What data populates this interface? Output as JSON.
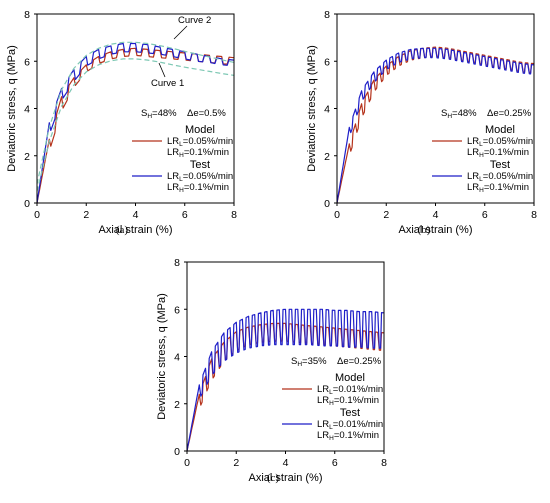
{
  "chart_data": [
    {
      "type": "line",
      "caption": "(a)",
      "xlabel": "Axial strain (%)",
      "ylabel": "Deviatoric stress, q (MPa)",
      "xlim": [
        0,
        8
      ],
      "ylim": [
        0,
        8
      ],
      "xticks": [
        "0",
        "2",
        "4",
        "6",
        "8"
      ],
      "yticks": [
        "0",
        "2",
        "4",
        "6",
        "8"
      ],
      "conditions": {
        "sh": "S",
        "sh_sub": "H",
        "sh_val": "=48%",
        "de": "Δe=0.5%"
      },
      "legend": {
        "model": {
          "header": "Model",
          "l1": "LR",
          "l1_sub": "L",
          "l1_val": "=0.05%/min",
          "l2": "LR",
          "l2_sub": "H",
          "l2_val": "=0.1%/min"
        },
        "test": {
          "header": "Test",
          "l1": "LR",
          "l1_sub": "L",
          "l1_val": "=0.05%/min",
          "l2": "LR",
          "l2_sub": "H",
          "l2_val": "=0.1%/min"
        }
      },
      "annotations": {
        "curve1": "Curve 1",
        "curve2": "Curve 2"
      },
      "series": [
        {
          "name": "Model",
          "color": "#b5331c",
          "low": [
            [
              0,
              0
            ],
            [
              0.5,
              2.2
            ],
            [
              1,
              3.9
            ],
            [
              1.5,
              4.9
            ],
            [
              2,
              5.55
            ],
            [
              2.5,
              5.9
            ],
            [
              3,
              6.1
            ],
            [
              3.5,
              6.2
            ],
            [
              4,
              6.25
            ],
            [
              4.5,
              6.2
            ],
            [
              5,
              6.15
            ],
            [
              5.5,
              6.1
            ],
            [
              6,
              6.05
            ],
            [
              6.5,
              6.0
            ],
            [
              7,
              5.95
            ],
            [
              7.5,
              5.9
            ],
            [
              8,
              5.85
            ]
          ],
          "high": [
            [
              0,
              0
            ],
            [
              0.5,
              2.7
            ],
            [
              1,
              4.5
            ],
            [
              1.5,
              5.3
            ],
            [
              2,
              5.85
            ],
            [
              2.5,
              6.2
            ],
            [
              3,
              6.4
            ],
            [
              3.5,
              6.5
            ],
            [
              4,
              6.55
            ],
            [
              4.5,
              6.5
            ],
            [
              5,
              6.45
            ],
            [
              5.5,
              6.4
            ],
            [
              6,
              6.35
            ],
            [
              6.5,
              6.3
            ],
            [
              7,
              6.25
            ],
            [
              7.5,
              6.2
            ],
            [
              8,
              6.15
            ]
          ],
          "cycle": 0.5
        },
        {
          "name": "Test",
          "color": "#1f1fc8",
          "low": [
            [
              0,
              0
            ],
            [
              0.5,
              2.9
            ],
            [
              1,
              4.35
            ],
            [
              1.5,
              5.15
            ],
            [
              2,
              5.8
            ],
            [
              2.5,
              6.1
            ],
            [
              3,
              6.3
            ],
            [
              3.5,
              6.4
            ],
            [
              4,
              6.4
            ],
            [
              4.5,
              6.35
            ],
            [
              5,
              6.3
            ],
            [
              5.5,
              6.2
            ],
            [
              6,
              6.1
            ],
            [
              6.5,
              6.0
            ],
            [
              7,
              5.95
            ],
            [
              7.5,
              5.85
            ],
            [
              8,
              5.8
            ]
          ],
          "high": [
            [
              0,
              0
            ],
            [
              0.5,
              3.4
            ],
            [
              1,
              4.85
            ],
            [
              1.5,
              5.65
            ],
            [
              2,
              6.2
            ],
            [
              2.5,
              6.5
            ],
            [
              3,
              6.65
            ],
            [
              3.5,
              6.75
            ],
            [
              4,
              6.75
            ],
            [
              4.5,
              6.7
            ],
            [
              5,
              6.6
            ],
            [
              5.5,
              6.5
            ],
            [
              6,
              6.4
            ],
            [
              6.5,
              6.3
            ],
            [
              7,
              6.2
            ],
            [
              7.5,
              6.1
            ],
            [
              8,
              6.05
            ]
          ],
          "cycle": 0.5
        },
        {
          "name": "Curve 2",
          "color": "#7ec8b4",
          "dashed": true,
          "points": [
            [
              0,
              0.8
            ],
            [
              0.5,
              3.2
            ],
            [
              1,
              4.8
            ],
            [
              1.5,
              5.7
            ],
            [
              2,
              6.25
            ],
            [
              2.5,
              6.55
            ],
            [
              3,
              6.72
            ],
            [
              3.5,
              6.8
            ],
            [
              4,
              6.8
            ],
            [
              4.5,
              6.75
            ],
            [
              5,
              6.66
            ],
            [
              5.5,
              6.55
            ],
            [
              6,
              6.42
            ],
            [
              6.5,
              6.3
            ],
            [
              7,
              6.18
            ],
            [
              7.5,
              6.06
            ],
            [
              8,
              5.95
            ]
          ]
        },
        {
          "name": "Curve 1",
          "color": "#7ec8b4",
          "dashed": true,
          "points": [
            [
              0,
              0.5
            ],
            [
              0.5,
              2.6
            ],
            [
              1,
              4.1
            ],
            [
              1.5,
              5.0
            ],
            [
              2,
              5.55
            ],
            [
              2.5,
              5.85
            ],
            [
              3,
              6.02
            ],
            [
              3.5,
              6.1
            ],
            [
              4,
              6.1
            ],
            [
              4.5,
              6.05
            ],
            [
              5,
              5.96
            ],
            [
              5.5,
              5.85
            ],
            [
              6,
              5.75
            ],
            [
              6.5,
              5.66
            ],
            [
              7,
              5.57
            ],
            [
              7.5,
              5.48
            ],
            [
              8,
              5.4
            ]
          ]
        }
      ]
    },
    {
      "type": "line",
      "caption": "(b)",
      "xlabel": "Axial strain (%)",
      "ylabel": "Deviatoric stress, q (MPa)",
      "xlim": [
        0,
        8
      ],
      "ylim": [
        0,
        8
      ],
      "xticks": [
        "0",
        "2",
        "4",
        "6",
        "8"
      ],
      "yticks": [
        "0",
        "2",
        "4",
        "6",
        "8"
      ],
      "conditions": {
        "sh": "S",
        "sh_sub": "H",
        "sh_val": "=48%",
        "de": "Δe=0.25%"
      },
      "legend": {
        "model": {
          "header": "Model",
          "l1": "LR",
          "l1_sub": "L",
          "l1_val": "=0.05%/min",
          "l2": "LR",
          "l2_sub": "H",
          "l2_val": "=0.1%/min"
        },
        "test": {
          "header": "Test",
          "l1": "LR",
          "l1_sub": "L",
          "l1_val": "=0.05%/min",
          "l2": "LR",
          "l2_sub": "H",
          "l2_val": "=0.1%/min"
        }
      },
      "series": [
        {
          "name": "Model",
          "color": "#b5331c",
          "low": [
            [
              0,
              0
            ],
            [
              0.5,
              2.0
            ],
            [
              1,
              3.6
            ],
            [
              1.5,
              4.7
            ],
            [
              2,
              5.4
            ],
            [
              2.5,
              5.8
            ],
            [
              3,
              6.05
            ],
            [
              3.5,
              6.15
            ],
            [
              4,
              6.2
            ],
            [
              4.5,
              6.15
            ],
            [
              5,
              6.05
            ],
            [
              5.5,
              5.95
            ],
            [
              6,
              5.85
            ],
            [
              6.5,
              5.75
            ],
            [
              7,
              5.65
            ],
            [
              7.5,
              5.55
            ],
            [
              8,
              5.5
            ]
          ],
          "high": [
            [
              0,
              0
            ],
            [
              0.5,
              2.5
            ],
            [
              1,
              4.2
            ],
            [
              1.5,
              5.2
            ],
            [
              2,
              5.8
            ],
            [
              2.5,
              6.2
            ],
            [
              3,
              6.45
            ],
            [
              3.5,
              6.55
            ],
            [
              4,
              6.6
            ],
            [
              4.5,
              6.55
            ],
            [
              5,
              6.45
            ],
            [
              5.5,
              6.35
            ],
            [
              6,
              6.25
            ],
            [
              6.5,
              6.15
            ],
            [
              7,
              6.05
            ],
            [
              7.5,
              5.95
            ],
            [
              8,
              5.9
            ]
          ],
          "cycle": 0.25
        },
        {
          "name": "Test",
          "color": "#1f1fc8",
          "low": [
            [
              0,
              0
            ],
            [
              0.5,
              2.8
            ],
            [
              1,
              4.3
            ],
            [
              1.5,
              5.1
            ],
            [
              2,
              5.65
            ],
            [
              2.5,
              5.95
            ],
            [
              3,
              6.1
            ],
            [
              3.5,
              6.15
            ],
            [
              4,
              6.15
            ],
            [
              4.5,
              6.1
            ],
            [
              5,
              6.0
            ],
            [
              5.5,
              5.9
            ],
            [
              6,
              5.8
            ],
            [
              6.5,
              5.7
            ],
            [
              7,
              5.6
            ],
            [
              7.5,
              5.5
            ],
            [
              8,
              5.45
            ]
          ],
          "high": [
            [
              0,
              0
            ],
            [
              0.5,
              3.2
            ],
            [
              1,
              4.75
            ],
            [
              1.5,
              5.55
            ],
            [
              2,
              6.05
            ],
            [
              2.5,
              6.35
            ],
            [
              3,
              6.5
            ],
            [
              3.5,
              6.55
            ],
            [
              4,
              6.55
            ],
            [
              4.5,
              6.5
            ],
            [
              5,
              6.4
            ],
            [
              5.5,
              6.3
            ],
            [
              6,
              6.2
            ],
            [
              6.5,
              6.1
            ],
            [
              7,
              6.0
            ],
            [
              7.5,
              5.9
            ],
            [
              8,
              5.85
            ]
          ],
          "cycle": 0.25
        }
      ]
    },
    {
      "type": "line",
      "caption": "(c)",
      "xlabel": "Axial strain (%)",
      "ylabel": "Deviatoric stress, q (MPa)",
      "xlim": [
        0,
        8
      ],
      "ylim": [
        0,
        8
      ],
      "xticks": [
        "0",
        "2",
        "4",
        "6",
        "8"
      ],
      "yticks": [
        "0",
        "2",
        "4",
        "6",
        "8"
      ],
      "conditions": {
        "sh": "S",
        "sh_sub": "H",
        "sh_val": "=35%",
        "de": "Δe=0.25%"
      },
      "legend": {
        "model": {
          "header": "Model",
          "l1": "LR",
          "l1_sub": "L",
          "l1_val": "=0.01%/min",
          "l2": "LR",
          "l2_sub": "H",
          "l2_val": "=0.1%/min"
        },
        "test": {
          "header": "Test",
          "l1": "LR",
          "l1_sub": "L",
          "l1_val": "=0.01%/min",
          "l2": "LR",
          "l2_sub": "H",
          "l2_val": "=0.1%/min"
        }
      },
      "series": [
        {
          "name": "Model",
          "color": "#b5331c",
          "low": [
            [
              0,
              0
            ],
            [
              0.5,
              1.8
            ],
            [
              1,
              3.0
            ],
            [
              1.5,
              3.8
            ],
            [
              2,
              4.25
            ],
            [
              2.5,
              4.5
            ],
            [
              3,
              4.6
            ],
            [
              3.5,
              4.65
            ],
            [
              4,
              4.65
            ],
            [
              4.5,
              4.6
            ],
            [
              5,
              4.55
            ],
            [
              5.5,
              4.5
            ],
            [
              6,
              4.45
            ],
            [
              6.5,
              4.4
            ],
            [
              7,
              4.35
            ],
            [
              7.5,
              4.3
            ],
            [
              8,
              4.25
            ]
          ],
          "high": [
            [
              0,
              0
            ],
            [
              0.5,
              2.4
            ],
            [
              1,
              3.9
            ],
            [
              1.5,
              4.6
            ],
            [
              2,
              5.05
            ],
            [
              2.5,
              5.25
            ],
            [
              3,
              5.35
            ],
            [
              3.5,
              5.4
            ],
            [
              4,
              5.4
            ],
            [
              4.5,
              5.35
            ],
            [
              5,
              5.3
            ],
            [
              5.5,
              5.25
            ],
            [
              6,
              5.2
            ],
            [
              6.5,
              5.15
            ],
            [
              7,
              5.1
            ],
            [
              7.5,
              5.05
            ],
            [
              8,
              5.0
            ]
          ],
          "cycle": 0.25
        },
        {
          "name": "Test",
          "color": "#1f1fc8",
          "low": [
            [
              0,
              0
            ],
            [
              0.5,
              2.2
            ],
            [
              1,
              3.2
            ],
            [
              1.5,
              3.8
            ],
            [
              2,
              4.15
            ],
            [
              2.5,
              4.35
            ],
            [
              3,
              4.45
            ],
            [
              3.5,
              4.5
            ],
            [
              4,
              4.5
            ],
            [
              4.5,
              4.5
            ],
            [
              5,
              4.5
            ],
            [
              5.5,
              4.45
            ],
            [
              6,
              4.45
            ],
            [
              6.5,
              4.4
            ],
            [
              7,
              4.4
            ],
            [
              7.5,
              4.35
            ],
            [
              8,
              4.35
            ]
          ],
          "high": [
            [
              0,
              0
            ],
            [
              0.5,
              2.8
            ],
            [
              1,
              4.2
            ],
            [
              1.5,
              5.0
            ],
            [
              2,
              5.45
            ],
            [
              2.5,
              5.7
            ],
            [
              3,
              5.85
            ],
            [
              3.5,
              5.95
            ],
            [
              4,
              6.0
            ],
            [
              4.5,
              6.0
            ],
            [
              5,
              6.0
            ],
            [
              5.5,
              6.0
            ],
            [
              6,
              5.95
            ],
            [
              6.5,
              5.95
            ],
            [
              7,
              5.9
            ],
            [
              7.5,
              5.9
            ],
            [
              8,
              5.85
            ]
          ],
          "cycle": 0.25
        }
      ]
    }
  ]
}
